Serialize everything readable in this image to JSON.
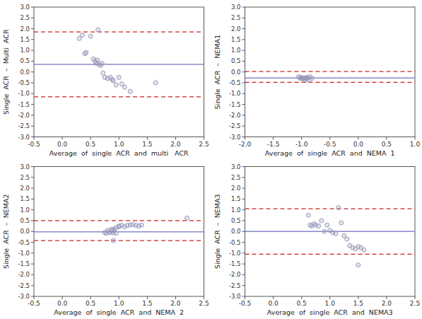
{
  "chart_data": [
    {
      "type": "scatter",
      "x_label": "Average  of  single  ACR  and  multi   ACR",
      "y_label": "Single  ACR  –  Multi  ACR",
      "xlim": [
        -0.5,
        2.5
      ],
      "ylim": [
        -3.0,
        3.0
      ],
      "xticks": [
        -0.5,
        {
          "value": 0.0,
          "label": "0.0"
        },
        0.5,
        {
          "value": 1.0,
          "label": "1.0"
        },
        1.5,
        {
          "value": 2.0,
          "label": "2.0"
        },
        2.5
      ],
      "yticks": [
        {
          "value": -3.0,
          "label": "-3.0"
        },
        -2.5,
        {
          "value": -2.0,
          "label": "-2.0"
        },
        -1.5,
        {
          "value": -1.0,
          "label": "-1.0"
        },
        -0.5,
        {
          "value": 0.0,
          "label": "0.0"
        },
        0.5,
        {
          "value": 1.0,
          "label": "1.0"
        },
        1.5,
        {
          "value": 2.0,
          "label": "2.0"
        },
        2.5,
        {
          "value": 3.0,
          "label": "3.0"
        }
      ],
      "grid": false,
      "color": "#9999bb",
      "mean": {
        "value": 0.35,
        "color": "#8888cc",
        "line_style": "solid"
      },
      "loa_upper": {
        "value": 1.85,
        "color": "#cc2222",
        "line_style": "dashed"
      },
      "loa_lower": {
        "value": -1.15,
        "color": "#cc2222",
        "line_style": "dashed"
      },
      "x": [
        0.3,
        0.35,
        0.4,
        0.42,
        0.5,
        0.55,
        0.58,
        0.6,
        0.62,
        0.63,
        0.65,
        0.68,
        0.7,
        0.72,
        0.75,
        0.8,
        0.85,
        0.88,
        0.9,
        0.95,
        1.0,
        1.05,
        1.1,
        1.2,
        1.65
      ],
      "values": [
        1.55,
        1.7,
        0.85,
        0.9,
        1.65,
        0.6,
        0.5,
        0.4,
        0.55,
        1.95,
        0.35,
        0.3,
        0.4,
        -0.05,
        -0.25,
        -0.3,
        -0.25,
        -0.35,
        -0.4,
        -0.6,
        -0.25,
        -0.55,
        -0.7,
        -0.9,
        -0.5
      ]
    },
    {
      "type": "scatter",
      "x_label": "Average  of  single  ACR  and  NEMA  1",
      "y_label": "Single  ACR  –  NEMA1",
      "xlim": [
        -2.0,
        1.0
      ],
      "ylim": [
        -3.0,
        3.0
      ],
      "xticks": [
        {
          "value": -2.0,
          "label": "-2.0"
        },
        -1.5,
        {
          "value": -1.0,
          "label": "-1.0"
        },
        -0.5,
        {
          "value": 0.0,
          "label": "0.0"
        },
        0.5,
        {
          "value": 1.0,
          "label": "1.0"
        }
      ],
      "yticks": [
        {
          "value": -3.0,
          "label": "-3.0"
        },
        -2.5,
        {
          "value": -2.0,
          "label": "-2.0"
        },
        -1.5,
        {
          "value": -1.0,
          "label": "-1.0"
        },
        -0.5,
        {
          "value": 0.0,
          "label": "0.0"
        },
        0.5,
        {
          "value": 1.0,
          "label": "1.0"
        },
        1.5,
        {
          "value": 2.0,
          "label": "2.0"
        },
        2.5,
        {
          "value": 3.0,
          "label": "3.0"
        }
      ],
      "grid": false,
      "color": "#9999bb",
      "mean": {
        "value": -0.28,
        "color": "#8888cc",
        "line_style": "solid"
      },
      "loa_upper": {
        "value": 0.02,
        "color": "#cc2222",
        "line_style": "dashed"
      },
      "loa_lower": {
        "value": -0.48,
        "color": "#cc2222",
        "line_style": "dashed"
      },
      "x": [
        -1.05,
        -1.03,
        -1.0,
        -1.0,
        -0.98,
        -0.95,
        -0.93,
        -0.92,
        -0.91,
        -0.9,
        -0.88,
        -0.85,
        -0.82
      ],
      "values": [
        -0.22,
        -0.28,
        -0.25,
        -0.3,
        -0.32,
        -0.28,
        -0.35,
        -0.27,
        -0.3,
        -0.25,
        -0.38,
        -0.22,
        -0.3
      ]
    },
    {
      "type": "scatter",
      "x_label": "Average  of  single  ACR  and  NEMA  2",
      "y_label": "Single  ACR  –  NEMA2",
      "xlim": [
        -0.5,
        2.5
      ],
      "ylim": [
        -3.0,
        3.0
      ],
      "xticks": [
        -0.5,
        {
          "value": 0.0,
          "label": "0.0"
        },
        0.5,
        {
          "value": 1.0,
          "label": "1.0"
        },
        1.5,
        {
          "value": 2.0,
          "label": "2.0"
        },
        2.5
      ],
      "yticks": [
        {
          "value": -3.0,
          "label": "-3.0"
        },
        -2.5,
        {
          "value": -2.0,
          "label": "-2.0"
        },
        -1.5,
        {
          "value": -1.0,
          "label": "-1.0"
        },
        -0.5,
        {
          "value": 0.0,
          "label": "0.0"
        },
        0.5,
        {
          "value": 1.0,
          "label": "1.0"
        },
        1.5,
        {
          "value": 2.0,
          "label": "2.0"
        },
        2.5,
        {
          "value": 3.0,
          "label": "3.0"
        }
      ],
      "grid": false,
      "color": "#9999bb",
      "mean": {
        "value": -0.02,
        "color": "#8888cc",
        "line_style": "solid"
      },
      "loa_upper": {
        "value": 0.5,
        "color": "#cc2222",
        "line_style": "dashed"
      },
      "loa_lower": {
        "value": -0.42,
        "color": "#cc2222",
        "line_style": "dashed"
      },
      "x": [
        0.75,
        0.78,
        0.8,
        0.82,
        0.85,
        0.87,
        0.88,
        0.9,
        0.9,
        0.92,
        0.95,
        0.95,
        1.0,
        1.0,
        1.05,
        1.1,
        1.15,
        1.2,
        1.25,
        1.3,
        1.35,
        1.4,
        2.2
      ],
      "values": [
        -0.05,
        -0.08,
        0.05,
        -0.02,
        -0.05,
        0.1,
        0.05,
        -0.42,
        -0.05,
        0.1,
        -0.08,
        0.18,
        0.22,
        0.25,
        0.28,
        0.22,
        0.28,
        0.3,
        0.32,
        0.28,
        0.25,
        0.3,
        0.62
      ]
    },
    {
      "type": "scatter",
      "x_label": "Average  of  single  ACR  and  NEMA3",
      "y_label": "Single  ACR  –  NEMA3",
      "xlim": [
        -0.5,
        2.5
      ],
      "ylim": [
        -3.0,
        3.0
      ],
      "xticks": [
        -0.5,
        {
          "value": 0.0,
          "label": "0.0"
        },
        0.5,
        {
          "value": 1.0,
          "label": "1.0"
        },
        1.5,
        {
          "value": 2.0,
          "label": "2.0"
        },
        2.5
      ],
      "yticks": [
        {
          "value": -3.0,
          "label": "-3.0"
        },
        -2.5,
        {
          "value": -2.0,
          "label": "-2.0"
        },
        -1.5,
        {
          "value": -1.0,
          "label": "-1.0"
        },
        -0.5,
        {
          "value": 0.0,
          "label": "0.0"
        },
        0.5,
        {
          "value": 1.0,
          "label": "1.0"
        },
        1.5,
        {
          "value": 2.0,
          "label": "2.0"
        },
        2.5,
        {
          "value": 3.0,
          "label": "3.0"
        }
      ],
      "grid": false,
      "color": "#9999bb",
      "mean": {
        "value": 0.0,
        "color": "#8888cc",
        "line_style": "solid"
      },
      "loa_upper": {
        "value": 1.05,
        "color": "#cc2222",
        "line_style": "dashed"
      },
      "loa_lower": {
        "value": -1.05,
        "color": "#cc2222",
        "line_style": "dashed"
      },
      "x": [
        0.62,
        0.65,
        0.68,
        0.72,
        0.75,
        0.8,
        0.85,
        0.9,
        0.95,
        1.0,
        1.05,
        1.1,
        1.15,
        1.2,
        1.25,
        1.3,
        1.35,
        1.4,
        1.45,
        1.5,
        1.55,
        1.6,
        1.5
      ],
      "values": [
        0.75,
        0.3,
        0.25,
        0.35,
        0.3,
        0.25,
        0.5,
        0.0,
        0.3,
        0.05,
        -0.05,
        -0.1,
        1.1,
        0.4,
        -0.2,
        -0.35,
        -0.65,
        -0.75,
        -0.8,
        -0.7,
        -0.75,
        -0.85,
        -1.55
      ]
    }
  ]
}
